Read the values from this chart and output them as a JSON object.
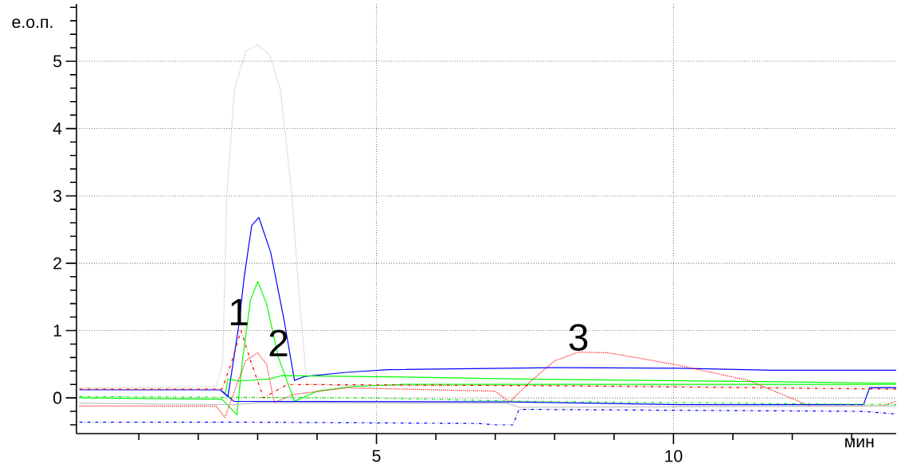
{
  "chart_data": {
    "type": "line",
    "xlabel": "мин",
    "ylabel": "е.о.п.",
    "grid": true,
    "xlim": [
      -0.05,
      13.75
    ],
    "ylim": [
      -0.53,
      5.85
    ],
    "xticks": [
      {
        "value": 1,
        "label": null
      },
      {
        "value": 2,
        "label": null
      },
      {
        "value": 3,
        "label": null
      },
      {
        "value": 4,
        "label": null
      },
      5,
      {
        "value": 6,
        "label": null
      },
      {
        "value": 7,
        "label": null
      },
      {
        "value": 8,
        "label": null
      },
      {
        "value": 9,
        "label": null
      },
      10,
      {
        "value": 11,
        "label": null
      },
      {
        "value": 12,
        "label": null
      },
      {
        "value": 13,
        "label": null
      }
    ],
    "yticks": [
      {
        "value": -0.4,
        "label": null
      },
      {
        "value": -0.2,
        "label": null
      },
      0,
      {
        "value": 0.2,
        "label": null
      },
      {
        "value": 0.4,
        "label": null
      },
      {
        "value": 0.6,
        "label": null
      },
      {
        "value": 0.8,
        "label": null
      },
      1,
      {
        "value": 1.2,
        "label": null
      },
      {
        "value": 1.4,
        "label": null
      },
      {
        "value": 1.6,
        "label": null
      },
      {
        "value": 1.8,
        "label": null
      },
      2,
      {
        "value": 2.2,
        "label": null
      },
      {
        "value": 2.4,
        "label": null
      },
      {
        "value": 2.6,
        "label": null
      },
      {
        "value": 2.8,
        "label": null
      },
      3,
      {
        "value": 3.2,
        "label": null
      },
      {
        "value": 3.4,
        "label": null
      },
      {
        "value": 3.6,
        "label": null
      },
      {
        "value": 3.8,
        "label": null
      },
      4,
      {
        "value": 4.2,
        "label": null
      },
      {
        "value": 4.4,
        "label": null
      },
      {
        "value": 4.6,
        "label": null
      },
      {
        "value": 4.8,
        "label": null
      },
      5,
      {
        "value": 5.2,
        "label": null
      },
      {
        "value": 5.4,
        "label": null
      },
      {
        "value": 5.6,
        "label": null
      },
      {
        "value": 5.8,
        "label": null
      }
    ],
    "annotations": [
      {
        "text": "1",
        "x": 2.68,
        "y": 1.06
      },
      {
        "text": "2",
        "x": 3.35,
        "y": 0.6
      },
      {
        "text": "3",
        "x": 8.4,
        "y": 0.68
      }
    ],
    "series": [
      {
        "color": "#c0c0c0",
        "line_style": "dotted",
        "x": [
          0,
          2.3,
          2.41,
          2.48,
          2.61,
          2.8,
          3.0,
          3.2,
          3.38,
          3.58,
          3.7,
          3.83,
          4.5,
          8,
          13.75
        ],
        "values": [
          0.15,
          0.17,
          0.5,
          2.99,
          4.59,
          5.15,
          5.24,
          5.1,
          4.59,
          2.99,
          1.48,
          0.2,
          0.18,
          0.19,
          0.17
        ]
      },
      {
        "color": "#0000ff",
        "line_style": "solid",
        "x": [
          0,
          2.37,
          2.5,
          2.68,
          2.77,
          2.9,
          3.02,
          3.22,
          3.44,
          3.62,
          3.8,
          4.5,
          5.2,
          8,
          10.1,
          11.66,
          13.75
        ],
        "values": [
          0.12,
          0.12,
          0.02,
          1.06,
          1.77,
          2.56,
          2.68,
          2.16,
          1.18,
          0.26,
          0.32,
          0.38,
          0.42,
          0.45,
          0.44,
          0.41,
          0.41
        ]
      },
      {
        "color": "#00ff00",
        "line_style": "solid",
        "x": [
          0,
          2.4,
          2.65,
          2.75,
          2.88,
          3.0,
          3.15,
          3.35,
          3.62,
          4.0,
          4.6,
          5.5,
          13.75
        ],
        "values": [
          0.0,
          -0.02,
          -0.25,
          0.6,
          1.45,
          1.73,
          1.4,
          0.6,
          -0.05,
          0.1,
          0.17,
          0.2,
          0.2
        ]
      },
      {
        "color": "#00ff00",
        "line_style": "solid",
        "x": [
          2.45,
          2.5,
          2.7,
          3.2,
          3.4,
          5.47,
          7.4,
          11.7,
          13.5,
          13.75
        ],
        "values": [
          0.05,
          0.28,
          0.25,
          0.28,
          0.33,
          0.31,
          0.28,
          0.24,
          0.22,
          0.22
        ]
      },
      {
        "color": "#ff0000",
        "line_style": "dotted",
        "x": [
          0,
          2.3,
          2.45,
          2.65,
          2.8,
          3.0,
          3.15,
          3.28,
          3.6,
          4.5,
          7.0,
          7.24,
          7.6,
          8.0,
          8.4,
          8.9,
          10.0,
          11.26,
          12.3,
          13.5,
          13.75
        ],
        "values": [
          -0.12,
          -0.12,
          -0.29,
          0.2,
          0.55,
          0.67,
          0.5,
          -0.07,
          0.05,
          0.15,
          0.1,
          -0.06,
          0.25,
          0.55,
          0.68,
          0.67,
          0.5,
          0.26,
          -0.12,
          -0.12,
          -0.05
        ]
      },
      {
        "color": "#ff0000",
        "line_style": "dashed",
        "x": [
          0,
          2.4,
          2.55,
          2.72,
          2.9,
          3.1,
          3.5,
          8,
          13.75
        ],
        "values": [
          0.13,
          0.13,
          0.5,
          1.0,
          0.5,
          0.0,
          0.2,
          0.18,
          0.13
        ]
      },
      {
        "color": "#0000ff",
        "line_style": "dashed",
        "x": [
          0,
          2.6,
          6.73,
          7.0,
          7.3,
          7.4,
          13.2,
          13.75
        ],
        "values": [
          -0.36,
          -0.36,
          -0.38,
          -0.4,
          -0.4,
          -0.17,
          -0.2,
          -0.24
        ]
      },
      {
        "color": "#c0c0c0",
        "line_style": "solid",
        "x": [
          0,
          2.6,
          3.0,
          7.2,
          7.4,
          13.75
        ],
        "values": [
          -0.08,
          -0.1,
          -0.07,
          -0.08,
          -0.14,
          -0.12
        ]
      },
      {
        "color": "#0000ff",
        "line_style": "solid",
        "x": [
          2.4,
          2.6,
          7.2,
          10.1,
          13.2,
          13.3,
          13.75
        ],
        "values": [
          0.1,
          -0.05,
          -0.06,
          -0.1,
          -0.1,
          0.15,
          0.15
        ]
      },
      {
        "color": "#00ff00",
        "line_style": "dashed",
        "x": [
          0,
          4.8,
          7.5,
          13.75
        ],
        "values": [
          0.02,
          0.0,
          -0.05,
          -0.1
        ]
      }
    ]
  }
}
